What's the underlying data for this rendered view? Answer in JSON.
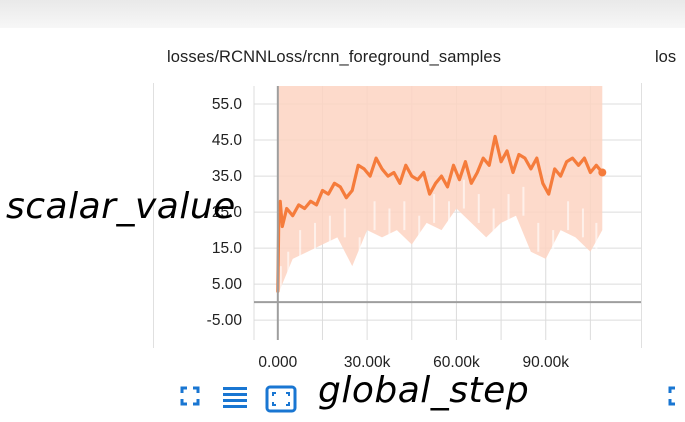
{
  "card": {
    "title": "losses/RCNNLoss/rcnn_foreground_samples",
    "next_title_partial": "los"
  },
  "annotations": {
    "y_label": "scalar_value",
    "x_label": "global_step"
  },
  "controls": {
    "expand_icon": "fullscreen-icon",
    "data_icon": "list-icon",
    "fit_icon": "fit-domain-icon",
    "accent_color": "#1976d2"
  },
  "colors": {
    "smoothed_line": "#f57c3c",
    "raw_band": "#fdd3c2",
    "grid": "#dcdcdc",
    "zero_axis": "#9e9e9e"
  },
  "chart_data": {
    "type": "line",
    "title": "losses/RCNNLoss/rcnn_foreground_samples",
    "xlabel": "global_step",
    "ylabel": "scalar_value",
    "xlim": [
      -8000,
      122000
    ],
    "ylim": [
      -10.5,
      60
    ],
    "x_ticks": [
      "0.000",
      "30.00k",
      "60.00k",
      "90.00k"
    ],
    "x_tick_values": [
      0,
      30000,
      60000,
      90000
    ],
    "y_ticks": [
      "55.0",
      "45.0",
      "35.0",
      "25.0",
      "15.0",
      "5.00",
      "-5.00"
    ],
    "y_tick_values": [
      55,
      45,
      35,
      25,
      15,
      5,
      -5
    ],
    "series": [
      {
        "role": "smoothed",
        "x": [
          0,
          300,
          800,
          1500,
          3000,
          5000,
          7000,
          9000,
          11000,
          13000,
          15000,
          17000,
          19000,
          21000,
          23000,
          25000,
          27000,
          29000,
          31000,
          33000,
          35000,
          37000,
          39000,
          41000,
          43000,
          45000,
          47000,
          49000,
          51000,
          53000,
          55000,
          57000,
          59000,
          61000,
          63000,
          65000,
          67000,
          69000,
          71000,
          73000,
          75000,
          77000,
          79000,
          81000,
          83000,
          85000,
          87000,
          89000,
          91000,
          93000,
          95000,
          97000,
          99000,
          101000,
          103000,
          105000,
          107000,
          109000
        ],
        "y": [
          3,
          22,
          28,
          21,
          26,
          24,
          27,
          26,
          28,
          27,
          31,
          30,
          33,
          32,
          29,
          31,
          38,
          37,
          35,
          40,
          37,
          35,
          36,
          33,
          38,
          35,
          34,
          36,
          30,
          33,
          35,
          32,
          38,
          34,
          39,
          33,
          36,
          40,
          38,
          46,
          39,
          42,
          36,
          41,
          40,
          37,
          40,
          33,
          30,
          37,
          35,
          39,
          40,
          38,
          40,
          36,
          38,
          36
        ]
      },
      {
        "role": "raw_envelope",
        "x": [
          0,
          2000,
          5000,
          10000,
          15000,
          20000,
          25000,
          30000,
          35000,
          40000,
          45000,
          50000,
          55000,
          60000,
          65000,
          70000,
          75000,
          80000,
          85000,
          90000,
          95000,
          100000,
          105000,
          109000
        ],
        "upper": [
          60,
          60,
          60,
          60,
          60,
          60,
          60,
          60,
          60,
          60,
          60,
          60,
          60,
          60,
          60,
          60,
          60,
          60,
          60,
          60,
          60,
          60,
          60,
          60
        ],
        "lower": [
          2,
          6,
          12,
          14,
          16,
          18,
          10,
          20,
          18,
          20,
          16,
          22,
          20,
          26,
          22,
          18,
          22,
          24,
          14,
          12,
          20,
          18,
          14,
          20
        ]
      }
    ],
    "grid": true,
    "legend": "none"
  }
}
